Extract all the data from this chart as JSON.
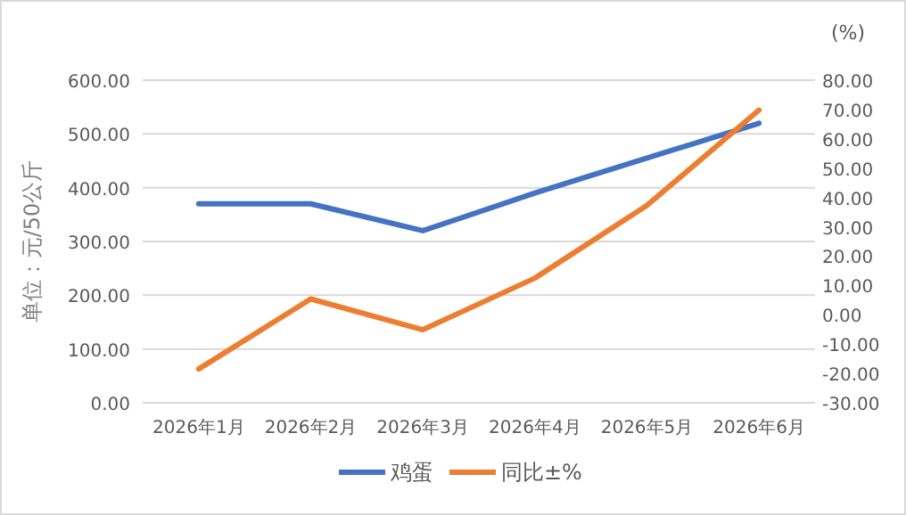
{
  "chart_data": {
    "type": "line",
    "ylabel": "单位：元/50公斤",
    "y2label": "(%)",
    "categories": [
      "2026年1月",
      "2026年2月",
      "2026年3月",
      "2026年4月",
      "2026年5月",
      "2026年6月"
    ],
    "series": [
      {
        "name": "鸡蛋",
        "color": "#4472c4",
        "values": [
          370,
          370,
          320,
          390,
          455,
          520
        ]
      },
      {
        "name": "同比±%",
        "color": "#ed7d31",
        "axis": "y2",
        "values": [
          -18.5,
          5.4,
          -5.1,
          12.5,
          37.3,
          69.8
        ]
      }
    ],
    "ylim": [
      0,
      600
    ],
    "yticks": [
      {
        "value": 0,
        "label": "0.00"
      },
      {
        "value": 100,
        "label": "100.00"
      },
      {
        "value": 200,
        "label": "200.00"
      },
      {
        "value": 300,
        "label": "300.00"
      },
      {
        "value": 400,
        "label": "400.00"
      },
      {
        "value": 500,
        "label": "500.00"
      },
      {
        "value": 600,
        "label": "600.00"
      }
    ],
    "y2lim": [
      -30,
      80
    ],
    "y2ticks": [
      {
        "value": -30,
        "label": "-30.00"
      },
      {
        "value": -20,
        "label": "-20.00"
      },
      {
        "value": -10,
        "label": "-10.00"
      },
      {
        "value": 0,
        "label": "0.00"
      },
      {
        "value": 10,
        "label": "10.00"
      },
      {
        "value": 20,
        "label": "20.00"
      },
      {
        "value": 30,
        "label": "30.00"
      },
      {
        "value": 40,
        "label": "40.00"
      },
      {
        "value": 50,
        "label": "50.00"
      },
      {
        "value": 60,
        "label": "60.00"
      },
      {
        "value": 70,
        "label": "70.00"
      },
      {
        "value": 80,
        "label": "80.00"
      }
    ],
    "grid": "y",
    "legend": "bottom",
    "marker": "none",
    "line_style": "solid"
  }
}
